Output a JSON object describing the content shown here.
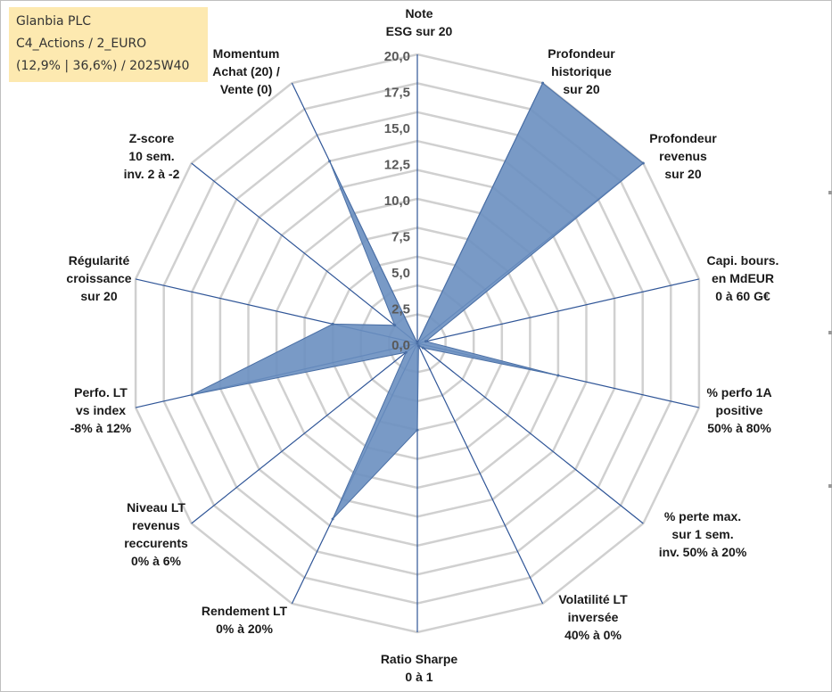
{
  "info_box": {
    "line1": "Glanbia PLC",
    "line2": "C4_Actions / 2_EURO",
    "line3": "(12,9% | 36,6%) / 2025W40"
  },
  "chart_data": {
    "type": "radar",
    "r_max": 20,
    "r_ticks": [
      "0,0",
      "2,5",
      "5,0",
      "7,5",
      "10,0",
      "12,5",
      "15,0",
      "17,5",
      "20,0"
    ],
    "grid_levels": 10,
    "series": [
      {
        "name": "Glanbia PLC",
        "color": "#6a8fc0",
        "values": [
          0,
          20,
          20,
          0.6,
          10,
          0.5,
          0.2,
          6,
          13.5,
          1,
          16,
          6,
          2,
          14
        ]
      }
    ],
    "categories": [
      [
        "Note",
        "ESG sur 20"
      ],
      [
        "Profondeur",
        "historique",
        "sur 20"
      ],
      [
        "Profondeur",
        "revenus",
        "sur 20"
      ],
      [
        "Capi. bours.",
        "en MdEUR",
        "0 à 60 G€"
      ],
      [
        "% perfo 1A",
        "positive",
        "50% à 80%"
      ],
      [
        "% perte max.",
        "sur 1 sem.",
        "inv. 50% à 20%"
      ],
      [
        "Volatilité LT",
        "inversée",
        "40% à 0%"
      ],
      [
        "Ratio Sharpe",
        "0 à 1"
      ],
      [
        "Rendement LT",
        "0% à 20%"
      ],
      [
        "Niveau LT",
        "revenus",
        "reccurents",
        "0% à 6%"
      ],
      [
        "Perfo. LT",
        "vs index",
        "-8% à 12%"
      ],
      [
        "Régularité",
        "croissance",
        "sur 20"
      ],
      [
        "Z-score",
        "10 sem.",
        "inv. 2 à -2"
      ],
      [
        "Momentum",
        "Achat (20) /",
        "Vente (0)"
      ]
    ]
  }
}
